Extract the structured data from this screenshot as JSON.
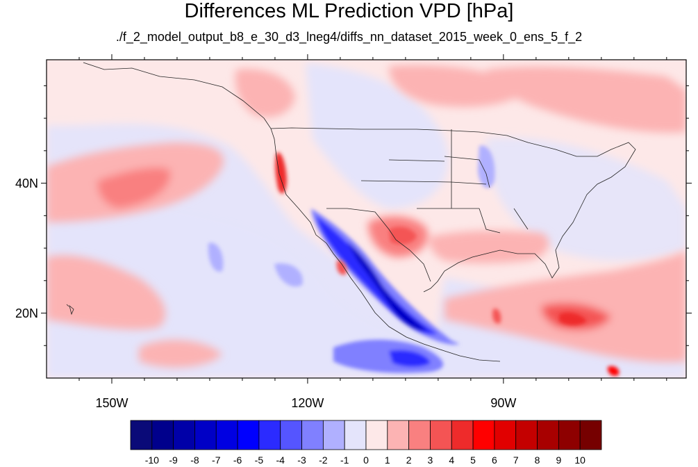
{
  "title": "Differences ML Prediction VPD [hPa]",
  "subtitle": "./f_2_model_output_b8_e_30_d3_lneg4/diffs_nn_dataset_2015_week_0_ens_5_f_2",
  "map": {
    "lon_range": [
      -160,
      -62
    ],
    "lat_range": [
      10,
      59
    ],
    "lat_labels": [
      {
        "value": 40,
        "text": "40N"
      },
      {
        "value": 20,
        "text": "20N"
      }
    ],
    "lon_labels": [
      {
        "value": -150,
        "text": "150W"
      },
      {
        "value": -120,
        "text": "120W"
      },
      {
        "value": -90,
        "text": "90W"
      }
    ]
  },
  "colorbar": {
    "labels": [
      "-10",
      "-9",
      "-8",
      "-7",
      "-6",
      "-5",
      "-4",
      "-3",
      "-2",
      "-1",
      "0",
      "1",
      "2",
      "3",
      "4",
      "5",
      "6",
      "7",
      "8",
      "9",
      "10"
    ],
    "colors": [
      "#0a0a78",
      "#00008c",
      "#0000a8",
      "#0000c6",
      "#0000e2",
      "#0000ff",
      "#2b2bff",
      "#5555ff",
      "#8080ff",
      "#b0b0ff",
      "#e4e4fb",
      "#fde8e8",
      "#fcb3b3",
      "#f98080",
      "#f45454",
      "#ee2b2b",
      "#ff0000",
      "#e10000",
      "#c40000",
      "#a80000",
      "#8e0000",
      "#760000"
    ]
  }
}
